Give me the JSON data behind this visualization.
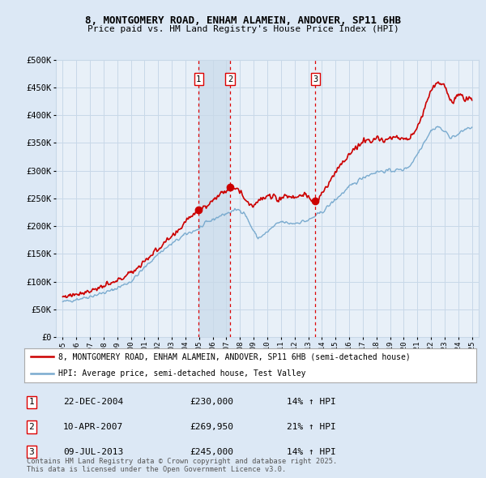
{
  "title": "8, MONTGOMERY ROAD, ENHAM ALAMEIN, ANDOVER, SP11 6HB",
  "subtitle": "Price paid vs. HM Land Registry's House Price Index (HPI)",
  "legend_line1": "8, MONTGOMERY ROAD, ENHAM ALAMEIN, ANDOVER, SP11 6HB (semi-detached house)",
  "legend_line2": "HPI: Average price, semi-detached house, Test Valley",
  "footnote": "Contains HM Land Registry data © Crown copyright and database right 2025.\nThis data is licensed under the Open Government Licence v3.0.",
  "sales": [
    {
      "num": 1,
      "date": "22-DEC-2004",
      "price": 230000,
      "pct": "14%",
      "dir": "↑"
    },
    {
      "num": 2,
      "date": "10-APR-2007",
      "price": 269950,
      "pct": "21%",
      "dir": "↑"
    },
    {
      "num": 3,
      "date": "09-JUL-2013",
      "price": 245000,
      "pct": "14%",
      "dir": "↑"
    }
  ],
  "sale_years": [
    2004.97,
    2007.27,
    2013.52
  ],
  "sale_prices": [
    230000,
    269950,
    245000
  ],
  "ylim": [
    0,
    500000
  ],
  "yticks": [
    0,
    50000,
    100000,
    150000,
    200000,
    250000,
    300000,
    350000,
    400000,
    450000,
    500000
  ],
  "xlim": [
    1994.5,
    2025.5
  ],
  "xticks": [
    1995,
    1996,
    1997,
    1998,
    1999,
    2000,
    2001,
    2002,
    2003,
    2004,
    2005,
    2006,
    2007,
    2008,
    2009,
    2010,
    2011,
    2012,
    2013,
    2014,
    2015,
    2016,
    2017,
    2018,
    2019,
    2020,
    2021,
    2022,
    2023,
    2024,
    2025
  ],
  "red_color": "#cc0000",
  "blue_color": "#7aabcf",
  "bg_color": "#dce8f5",
  "plot_bg": "#e8f0f8",
  "grid_color": "#c8d8e8",
  "vline_color": "#dd0000",
  "shade_color": "#ccdcec"
}
